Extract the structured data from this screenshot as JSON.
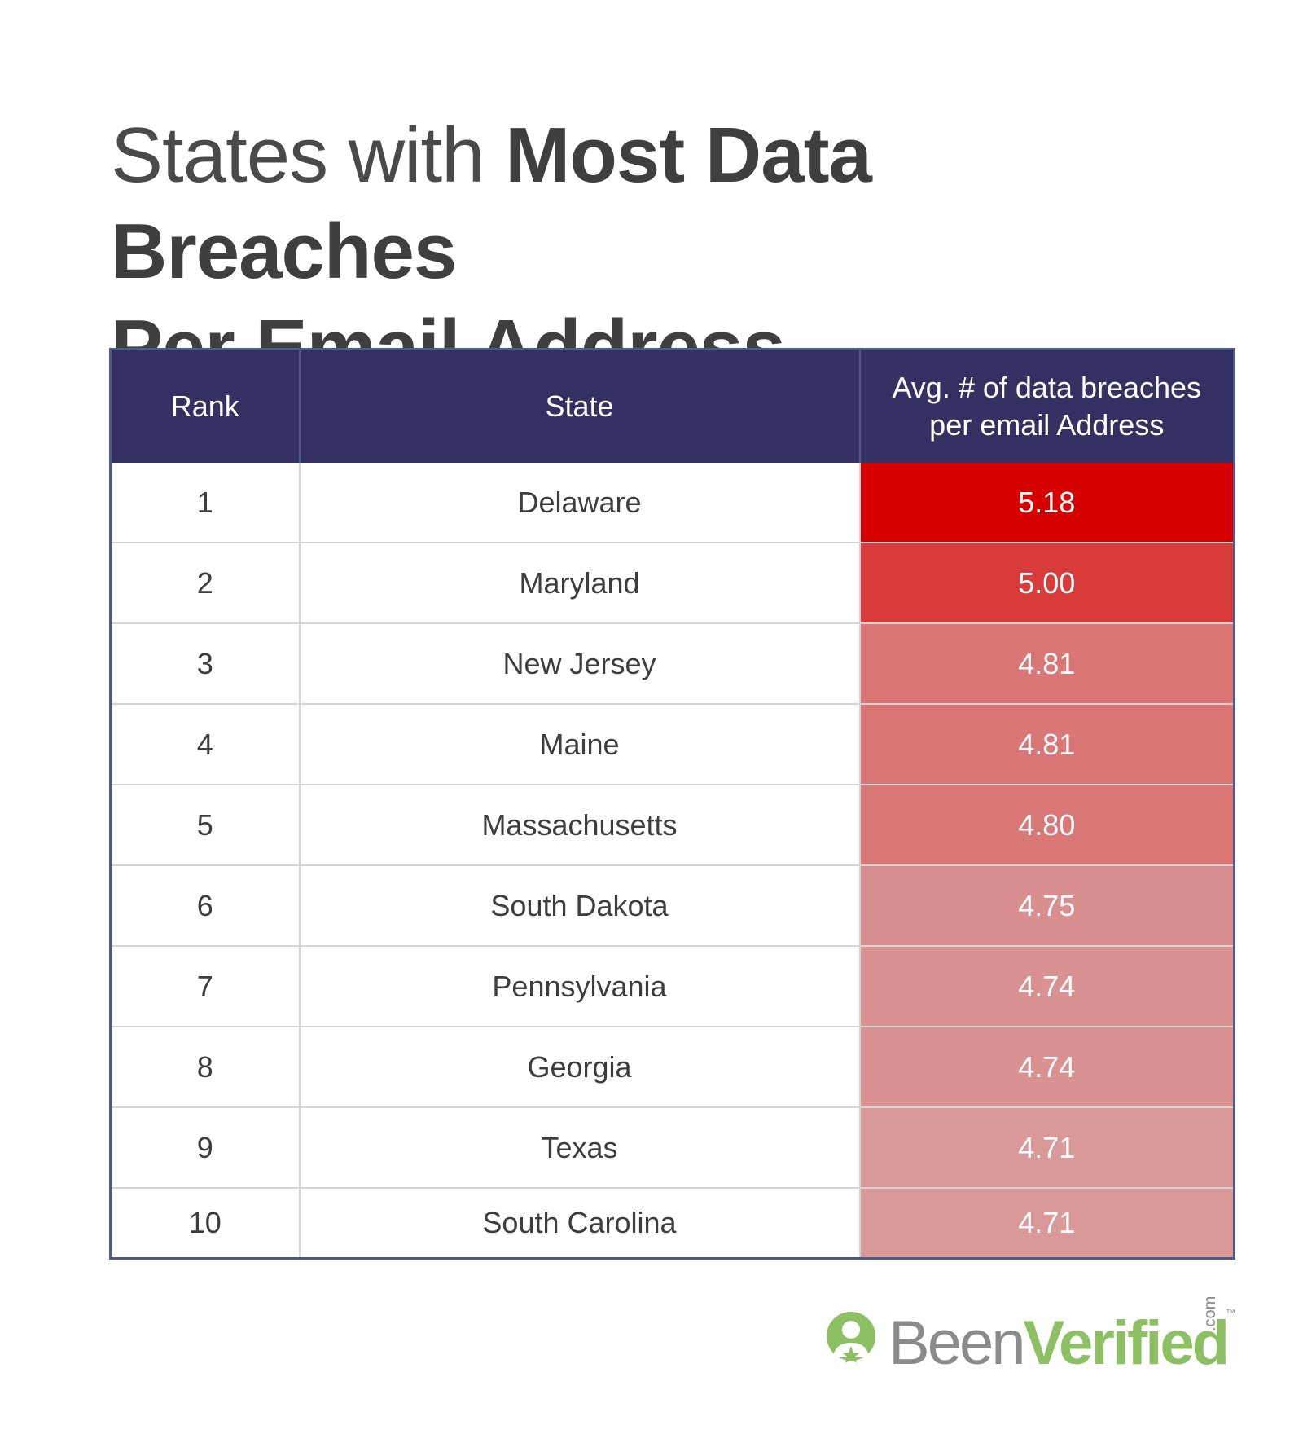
{
  "title": {
    "light": "States with ",
    "bold_line1": "Most Data Breaches",
    "bold_line2": "Per Email Address"
  },
  "table": {
    "headers": {
      "rank": "Rank",
      "state": "State",
      "value_line1": "Avg. # of data breaches",
      "value_line2": "per email Address"
    }
  },
  "colors": {
    "header_bg": "#343162",
    "heat_high": "#d70000",
    "heat_low": "#d99595",
    "logo_green": "#8cc063",
    "logo_gray": "#8b8b8b"
  },
  "chart_data": {
    "type": "table",
    "columns": [
      "Rank",
      "State",
      "Avg. # of data breaches per email Address"
    ],
    "rows": [
      {
        "rank": "1",
        "state": "Delaware",
        "value": "5.18",
        "color": "#d70000"
      },
      {
        "rank": "2",
        "state": "Maryland",
        "value": "5.00",
        "color": "#d93b3b"
      },
      {
        "rank": "3",
        "state": "New Jersey",
        "value": "4.81",
        "color": "#da7676"
      },
      {
        "rank": "4",
        "state": "Maine",
        "value": "4.81",
        "color": "#da7676"
      },
      {
        "rank": "5",
        "state": "Massachusetts",
        "value": "4.80",
        "color": "#da7878"
      },
      {
        "rank": "6",
        "state": "South Dakota",
        "value": "4.75",
        "color": "#d98f8f"
      },
      {
        "rank": "7",
        "state": "Pennsylvania",
        "value": "4.74",
        "color": "#d99191"
      },
      {
        "rank": "8",
        "state": "Georgia",
        "value": "4.74",
        "color": "#d99191"
      },
      {
        "rank": "9",
        "state": "Texas",
        "value": "4.71",
        "color": "#d99999"
      },
      {
        "rank": "10",
        "state": "South Carolina",
        "value": "4.71",
        "color": "#d99999"
      }
    ]
  },
  "logo": {
    "been": "Been",
    "verified": "Verified",
    "com": ".com",
    "tm": "™"
  }
}
